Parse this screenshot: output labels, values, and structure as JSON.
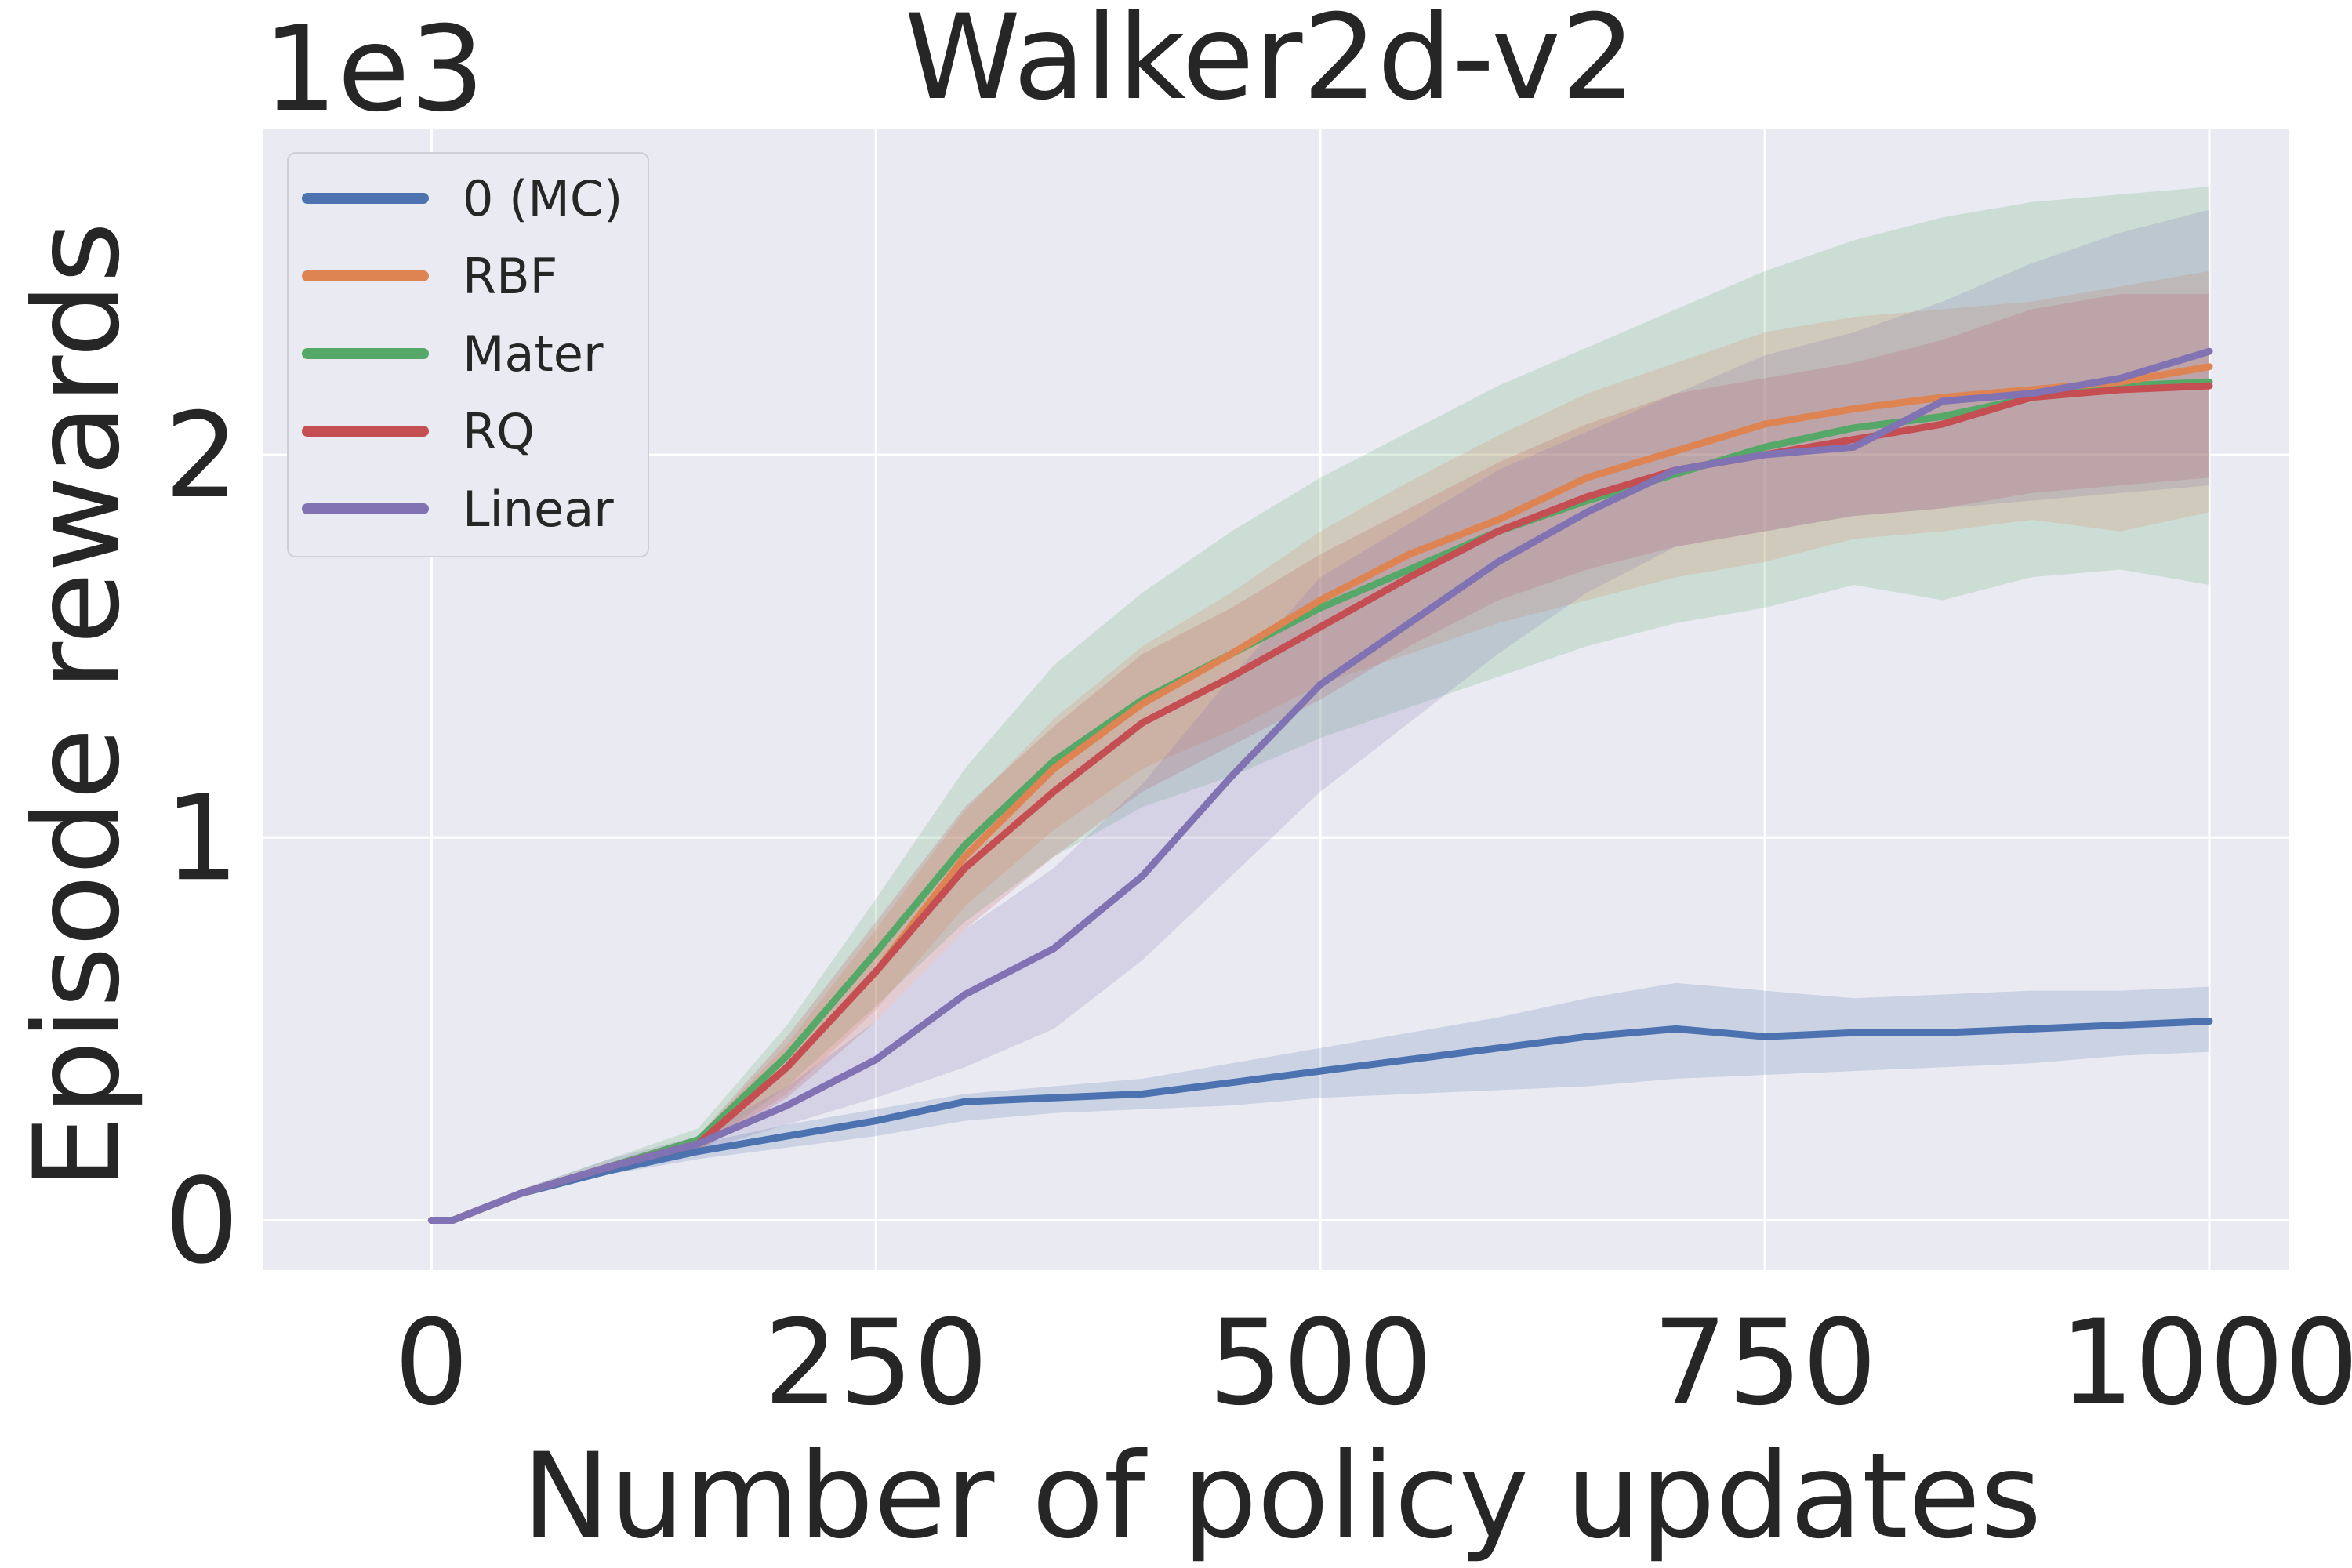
{
  "chart_data": {
    "type": "line",
    "title": "Walker2d-v2",
    "xlabel": "Number of policy updates",
    "ylabel": "Episode rewards",
    "y_scale_label": "1e3",
    "xlim": [
      -95,
      1045
    ],
    "ylim": [
      -0.13,
      2.85
    ],
    "xticks": [
      0,
      250,
      500,
      750,
      1000
    ],
    "xtick_labels": [
      "0",
      "250",
      "500",
      "750",
      "1000"
    ],
    "yticks": [
      0,
      1,
      2
    ],
    "ytick_labels": [
      "0",
      "1",
      "2"
    ],
    "grid": true,
    "legend_position": "top-left",
    "x": [
      0,
      12,
      50,
      100,
      150,
      200,
      250,
      300,
      350,
      400,
      450,
      500,
      550,
      600,
      650,
      700,
      750,
      800,
      850,
      900,
      950,
      1000
    ],
    "series": [
      {
        "name": "0 (MC)",
        "color": "#4c72b0",
        "values": [
          0,
          0.0,
          0.07,
          0.13,
          0.18,
          0.22,
          0.26,
          0.31,
          0.32,
          0.33,
          0.36,
          0.39,
          0.42,
          0.45,
          0.48,
          0.5,
          0.48,
          0.49,
          0.49,
          0.5,
          0.51,
          0.52
        ],
        "lower": [
          0,
          0.0,
          0.06,
          0.12,
          0.16,
          0.19,
          0.22,
          0.26,
          0.28,
          0.29,
          0.3,
          0.32,
          0.33,
          0.34,
          0.35,
          0.37,
          0.38,
          0.39,
          0.4,
          0.41,
          0.43,
          0.44
        ],
        "upper": [
          0,
          0.0,
          0.08,
          0.14,
          0.2,
          0.25,
          0.29,
          0.33,
          0.35,
          0.37,
          0.41,
          0.45,
          0.49,
          0.53,
          0.58,
          0.62,
          0.6,
          0.58,
          0.59,
          0.6,
          0.6,
          0.61
        ]
      },
      {
        "name": "RBF",
        "color": "#dd8452",
        "values": [
          0,
          0.0,
          0.07,
          0.14,
          0.2,
          0.4,
          0.65,
          0.95,
          1.18,
          1.35,
          1.48,
          1.62,
          1.74,
          1.83,
          1.94,
          2.01,
          2.08,
          2.12,
          2.15,
          2.17,
          2.19,
          2.23
        ],
        "lower": [
          0,
          0.0,
          0.06,
          0.13,
          0.18,
          0.33,
          0.55,
          0.82,
          1.02,
          1.18,
          1.28,
          1.4,
          1.48,
          1.56,
          1.62,
          1.68,
          1.72,
          1.78,
          1.8,
          1.83,
          1.8,
          1.85
        ],
        "upper": [
          0,
          0.0,
          0.08,
          0.15,
          0.22,
          0.46,
          0.76,
          1.07,
          1.31,
          1.5,
          1.64,
          1.8,
          1.93,
          2.05,
          2.16,
          2.24,
          2.32,
          2.36,
          2.38,
          2.4,
          2.44,
          2.48
        ]
      },
      {
        "name": "Mater",
        "color": "#55a868",
        "values": [
          0,
          0.0,
          0.07,
          0.14,
          0.21,
          0.43,
          0.7,
          0.98,
          1.2,
          1.36,
          1.48,
          1.6,
          1.7,
          1.8,
          1.88,
          1.95,
          2.02,
          2.07,
          2.1,
          2.15,
          2.18,
          2.19
        ],
        "lower": [
          0,
          0.0,
          0.06,
          0.12,
          0.18,
          0.35,
          0.56,
          0.78,
          0.95,
          1.08,
          1.16,
          1.26,
          1.34,
          1.42,
          1.5,
          1.56,
          1.6,
          1.66,
          1.62,
          1.68,
          1.7,
          1.66
        ],
        "upper": [
          0,
          0.0,
          0.08,
          0.16,
          0.24,
          0.51,
          0.84,
          1.18,
          1.45,
          1.64,
          1.8,
          1.94,
          2.06,
          2.18,
          2.28,
          2.38,
          2.48,
          2.56,
          2.62,
          2.66,
          2.68,
          2.7
        ]
      },
      {
        "name": "RQ",
        "color": "#c44e52",
        "values": [
          0,
          0.0,
          0.07,
          0.14,
          0.2,
          0.4,
          0.65,
          0.92,
          1.12,
          1.3,
          1.42,
          1.55,
          1.68,
          1.8,
          1.89,
          1.96,
          2.0,
          2.04,
          2.08,
          2.15,
          2.17,
          2.18
        ],
        "lower": [
          0,
          0.0,
          0.06,
          0.13,
          0.18,
          0.32,
          0.52,
          0.76,
          0.95,
          1.12,
          1.24,
          1.36,
          1.5,
          1.62,
          1.7,
          1.76,
          1.8,
          1.84,
          1.86,
          1.9,
          1.92,
          1.94
        ],
        "upper": [
          0,
          0.0,
          0.08,
          0.15,
          0.22,
          0.48,
          0.78,
          1.08,
          1.29,
          1.48,
          1.6,
          1.74,
          1.86,
          1.98,
          2.08,
          2.16,
          2.2,
          2.24,
          2.3,
          2.38,
          2.42,
          2.42
        ]
      },
      {
        "name": "Linear",
        "color": "#8172b3",
        "values": [
          0,
          0.0,
          0.07,
          0.14,
          0.2,
          0.3,
          0.42,
          0.59,
          0.71,
          0.9,
          1.16,
          1.4,
          1.56,
          1.72,
          1.85,
          1.96,
          2.0,
          2.02,
          2.14,
          2.16,
          2.2,
          2.27
        ],
        "lower": [
          0,
          0.0,
          0.06,
          0.12,
          0.18,
          0.25,
          0.32,
          0.4,
          0.5,
          0.68,
          0.9,
          1.12,
          1.3,
          1.48,
          1.64,
          1.76,
          1.8,
          1.84,
          1.86,
          1.88,
          1.9,
          1.92
        ],
        "upper": [
          0,
          0.0,
          0.08,
          0.16,
          0.22,
          0.35,
          0.52,
          0.76,
          0.92,
          1.14,
          1.42,
          1.68,
          1.82,
          1.96,
          2.06,
          2.16,
          2.26,
          2.32,
          2.4,
          2.5,
          2.58,
          2.64
        ]
      }
    ]
  }
}
